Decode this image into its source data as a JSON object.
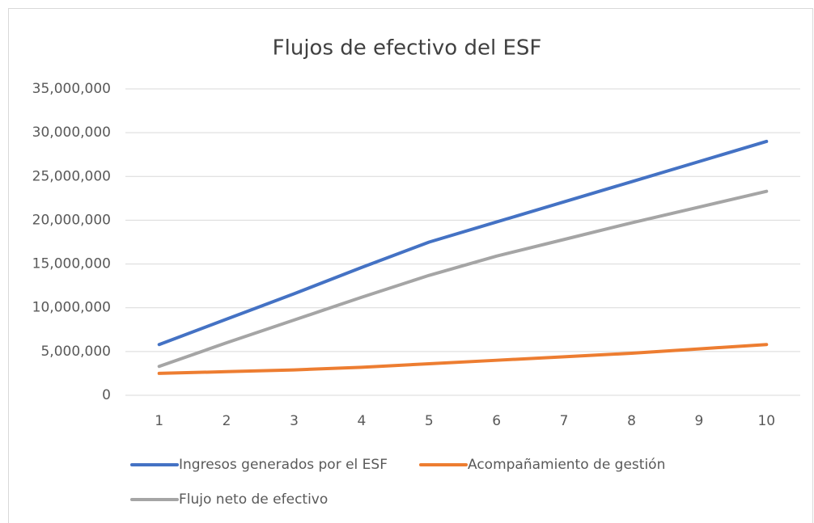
{
  "chart_data": {
    "type": "line",
    "title": "Flujos de efectivo del ESF",
    "categories": [
      "1",
      "2",
      "3",
      "4",
      "5",
      "6",
      "7",
      "8",
      "9",
      "10"
    ],
    "series": [
      {
        "name": "Ingresos generados por el ESF",
        "color": "#4472c4",
        "values": [
          5800000,
          8700000,
          11600000,
          14600000,
          17500000,
          19800000,
          22100000,
          24400000,
          26700000,
          29000000
        ]
      },
      {
        "name": "Acompañamiento de gestión",
        "color": "#ed7d31",
        "values": [
          2500000,
          2700000,
          2900000,
          3200000,
          3600000,
          4000000,
          4400000,
          4800000,
          5300000,
          5800000
        ]
      },
      {
        "name": "Flujo neto de efectivo",
        "color": "#a5a5a5",
        "values": [
          3300000,
          6000000,
          8600000,
          11200000,
          13700000,
          15900000,
          17800000,
          19700000,
          21500000,
          23300000
        ]
      }
    ],
    "ylim": [
      0,
      35000000
    ],
    "yticks": [
      0,
      {
        "value": 5000000,
        "label": "5,000,000"
      },
      {
        "value": 10000000,
        "label": "10,000,000"
      },
      {
        "value": 15000000,
        "label": "15,000,000"
      },
      {
        "value": 20000000,
        "label": "20,000,000"
      },
      {
        "value": 25000000,
        "label": "25,000,000"
      },
      {
        "value": 30000000,
        "label": "30,000,000"
      },
      {
        "value": 35000000,
        "label": "35,000,000"
      }
    ],
    "grid": true,
    "legend": "bottom"
  }
}
